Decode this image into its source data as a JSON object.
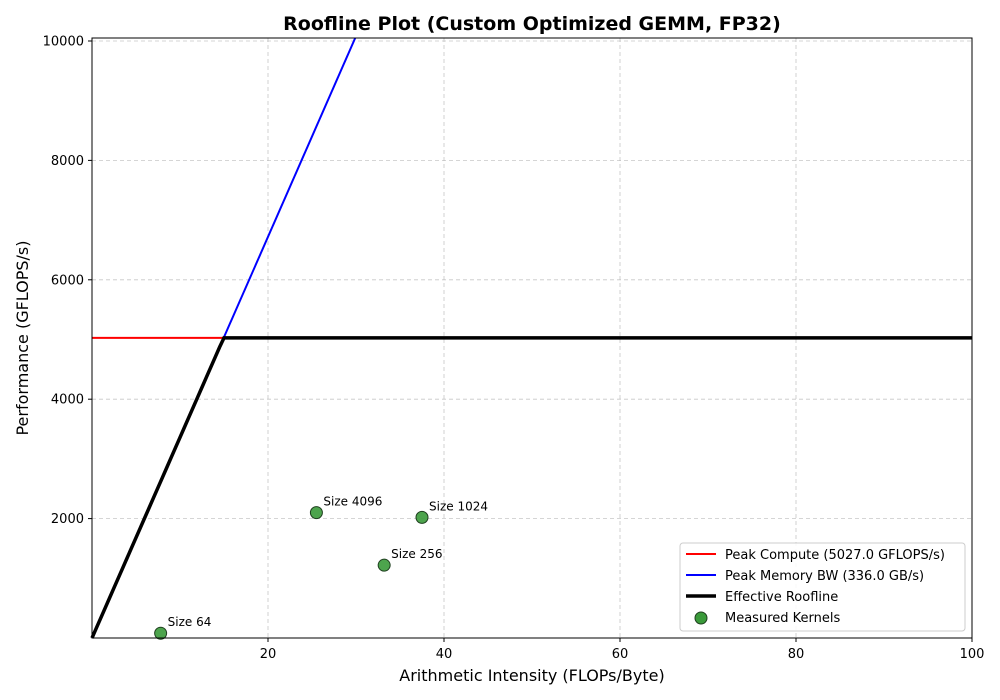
{
  "chart_data": {
    "type": "scatter",
    "title": "Roofline Plot (Custom Optimized GEMM, FP32)",
    "xlabel": "Arithmetic Intensity (FLOPs/Byte)",
    "ylabel": "Performance (GFLOPS/s)",
    "xlim": [
      0,
      100
    ],
    "ylim": [
      0,
      10050
    ],
    "x_ticks": [
      20,
      40,
      60,
      80,
      100
    ],
    "y_ticks": [
      2000,
      4000,
      6000,
      8000,
      10000
    ],
    "grid": true,
    "legend_position": "lower-right",
    "peak_compute_gflops": 5027.0,
    "peak_memory_bw_gbs": 336.0,
    "series": [
      {
        "name": "Peak Compute (5027.0 GFLOPS/s)",
        "kind": "hline",
        "color": "#ff0000"
      },
      {
        "name": "Peak Memory BW (336.0 GB/s)",
        "kind": "memory-line",
        "color": "#0000ff"
      },
      {
        "name": "Effective Roofline",
        "kind": "roofline",
        "color": "#000000"
      },
      {
        "name": "Measured Kernels",
        "kind": "points",
        "color": "#3a9a3a",
        "points": [
          {
            "label": "Size 64",
            "x": 7.8,
            "y": 80
          },
          {
            "label": "Size 256",
            "x": 33.2,
            "y": 1220
          },
          {
            "label": "Size 1024",
            "x": 37.5,
            "y": 2020
          },
          {
            "label": "Size 4096",
            "x": 25.5,
            "y": 2100
          }
        ]
      }
    ]
  }
}
